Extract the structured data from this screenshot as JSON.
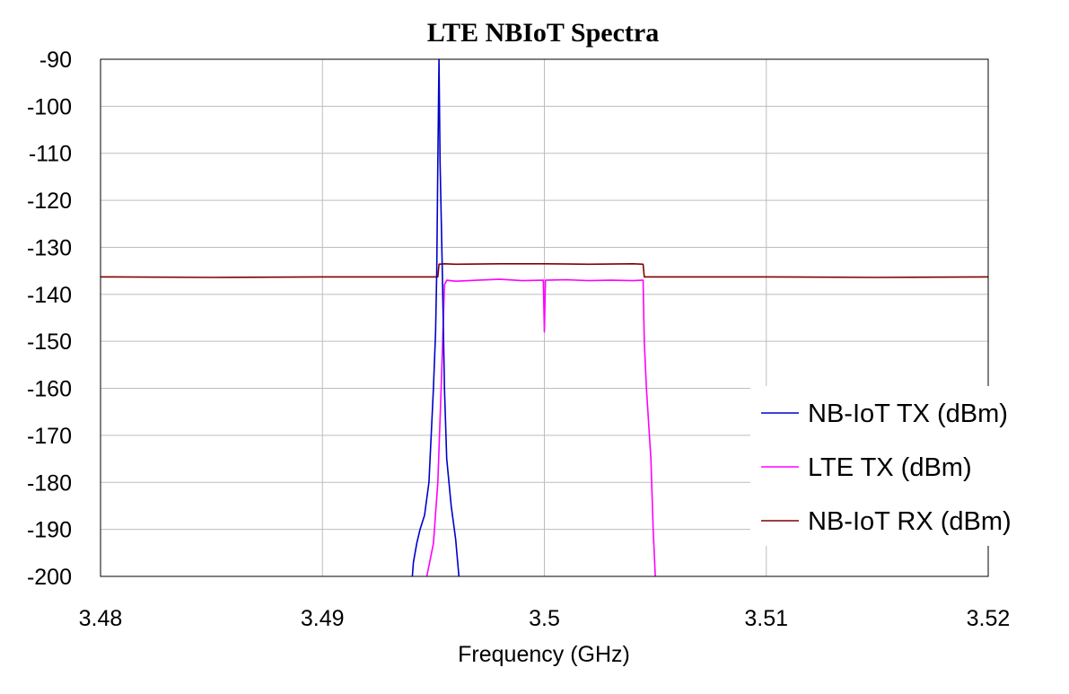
{
  "chart_data": {
    "type": "line",
    "title": "LTE NBIoT Spectra",
    "xlabel": "Frequency (GHz)",
    "ylabel": "",
    "xlim": [
      3.48,
      3.52
    ],
    "ylim": [
      -200,
      -90
    ],
    "grid": true,
    "legend_position": "bottom-right",
    "x_ticks": [
      3.48,
      3.49,
      3.5,
      3.51,
      3.52
    ],
    "x_tick_labels": [
      "3.48",
      "3.49",
      "3.5",
      "3.51",
      "3.52"
    ],
    "y_ticks": [
      -90,
      -100,
      -110,
      -120,
      -130,
      -140,
      -150,
      -160,
      -170,
      -180,
      -190,
      -200
    ],
    "y_tick_labels": [
      "-90",
      "-100",
      "-110",
      "-120",
      "-130",
      "-140",
      "-150",
      "-160",
      "-170",
      "-180",
      "-190",
      "-200"
    ],
    "series": [
      {
        "name": "NB-IoT TX (dBm)",
        "color": "#0000cc",
        "x": [
          3.49405,
          3.4941,
          3.49425,
          3.4944,
          3.4946,
          3.4948,
          3.4949,
          3.495,
          3.4951,
          3.49515,
          3.4952,
          3.49525,
          3.4953,
          3.4954,
          3.4955,
          3.4956,
          3.4958,
          3.496,
          3.49615
        ],
        "y": [
          -200,
          -197,
          -193,
          -190,
          -187,
          -180,
          -170,
          -160,
          -148,
          -135,
          -112,
          -90,
          -112,
          -135,
          -160,
          -175,
          -185,
          -192,
          -200
        ]
      },
      {
        "name": "LTE TX (dBm)",
        "color": "#ff00ff",
        "x": [
          3.4947,
          3.495,
          3.4952,
          3.49535,
          3.4955,
          3.4956,
          3.496,
          3.497,
          3.498,
          3.499,
          3.49995,
          3.5,
          3.50005,
          3.501,
          3.502,
          3.503,
          3.504,
          3.5044,
          3.50445,
          3.5045,
          3.5046,
          3.5048,
          3.5049,
          3.505
        ],
        "y": [
          -200,
          -193,
          -180,
          -160,
          -138,
          -137,
          -137.2,
          -137.0,
          -136.8,
          -137.1,
          -137.0,
          -148,
          -137.0,
          -136.9,
          -137.1,
          -137.0,
          -137.1,
          -137.0,
          -137.0,
          -150,
          -160,
          -175,
          -190,
          -200
        ]
      },
      {
        "name": "NB-IoT RX (dBm)",
        "color": "#800000",
        "x": [
          3.48,
          3.485,
          3.49,
          3.494,
          3.4952,
          3.49525,
          3.4955,
          3.496,
          3.498,
          3.5,
          3.502,
          3.504,
          3.50445,
          3.5045,
          3.505,
          3.51,
          3.515,
          3.52
        ],
        "y": [
          -136.3,
          -136.4,
          -136.3,
          -136.3,
          -136.3,
          -133.6,
          -133.5,
          -133.6,
          -133.5,
          -133.5,
          -133.6,
          -133.5,
          -133.6,
          -136.3,
          -136.3,
          -136.3,
          -136.4,
          -136.3
        ]
      }
    ]
  }
}
